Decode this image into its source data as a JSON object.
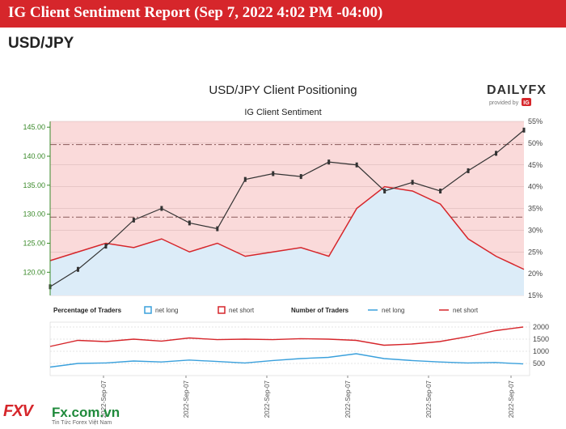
{
  "header": {
    "title": "IG Client Sentiment Report (Sep 7, 2022 4:02 PM -04:00)",
    "pair": "USD/JPY"
  },
  "brand": {
    "dailyfx": "DAILYFX",
    "provided_by": "provided by",
    "ig": "IG",
    "watermark_logo": "FXV",
    "watermark_site": "Fx.com.vn",
    "watermark_sub": "Tin Tức Forex Việt Nam"
  },
  "colors": {
    "net_long": "#3aa0dc",
    "net_short": "#d6262b",
    "price": "#333333",
    "short_fill": "#fadada",
    "long_fill": "#dcecf8",
    "price_axis": "#3a8a2a"
  },
  "chart_data": [
    {
      "type": "line",
      "title": "USD/JPY Client Positioning",
      "subtitle": "IG Client Sentiment",
      "price_axis": {
        "ticks": [
          "120.00",
          "125.00",
          "130.00",
          "135.00",
          "140.00",
          "145.00"
        ],
        "ylim": [
          116,
          146
        ]
      },
      "pct_axis": {
        "ticks": [
          "15%",
          "20%",
          "25%",
          "30%",
          "35%",
          "40%",
          "45%",
          "50%",
          "55%"
        ],
        "ylim": [
          15,
          55
        ]
      },
      "reference_lines_price": [
        142.0,
        129.5
      ],
      "grid": true,
      "price_series": [
        117.5,
        120.5,
        124.5,
        129.0,
        131.0,
        128.5,
        127.5,
        136.0,
        137.0,
        136.5,
        139.0,
        138.5,
        134.0,
        135.5,
        134.0,
        137.5,
        140.5,
        144.5
      ],
      "net_long_pct": [
        23,
        25,
        27,
        26,
        28,
        25,
        27,
        24,
        25,
        26,
        24,
        35,
        40,
        39,
        36,
        28,
        24,
        21
      ],
      "series": [
        {
          "name": "net long",
          "type": "area"
        },
        {
          "name": "net short",
          "type": "area"
        }
      ]
    },
    {
      "type": "line",
      "legend_left_title": "Percentage of Traders",
      "legend_left": [
        "net long",
        "net short"
      ],
      "legend_right_title": "Number of Traders",
      "legend_right": [
        "net long",
        "net short"
      ],
      "y_ticks": [
        "500",
        "1000",
        "1500",
        "2000"
      ],
      "ylim": [
        0,
        2200
      ],
      "x_ticks": [
        "2022-Sep-07",
        "2022-Sep-07",
        "2022-Sep-07",
        "2022-Sep-07",
        "2022-Sep-07",
        "2022-Sep-07"
      ],
      "series": [
        {
          "name": "net long",
          "values": [
            350,
            500,
            520,
            600,
            560,
            640,
            580,
            520,
            620,
            700,
            750,
            900,
            700,
            620,
            560,
            520,
            540,
            480
          ]
        },
        {
          "name": "net short",
          "values": [
            1200,
            1450,
            1400,
            1500,
            1420,
            1550,
            1480,
            1500,
            1480,
            1520,
            1500,
            1450,
            1250,
            1300,
            1400,
            1600,
            1850,
            2000
          ]
        }
      ]
    }
  ]
}
